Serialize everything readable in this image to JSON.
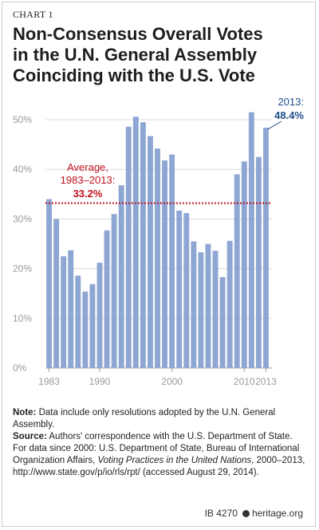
{
  "chart_label": "CHART 1",
  "title_lines": [
    "Non-Consensus Overall Votes",
    "in the U.N. General Assembly",
    "Coinciding with the U.S. Vote"
  ],
  "chart_data": {
    "type": "bar",
    "x": [
      1983,
      1984,
      1985,
      1986,
      1987,
      1988,
      1989,
      1990,
      1991,
      1992,
      1993,
      1994,
      1995,
      1996,
      1997,
      1998,
      1999,
      2000,
      2001,
      2002,
      2003,
      2004,
      2005,
      2006,
      2007,
      2008,
      2009,
      2010,
      2011,
      2012,
      2013
    ],
    "values": [
      34.0,
      30.0,
      22.5,
      23.7,
      18.6,
      15.4,
      16.9,
      21.2,
      27.7,
      31.0,
      36.8,
      48.6,
      50.6,
      49.5,
      46.7,
      44.2,
      41.8,
      43.0,
      31.7,
      31.2,
      25.5,
      23.3,
      25.0,
      23.6,
      18.3,
      25.6,
      39.0,
      41.6,
      51.5,
      42.5,
      48.4
    ],
    "y_ticks": [
      "0%",
      "10%",
      "20%",
      "30%",
      "40%",
      "50%"
    ],
    "x_ticks": [
      "1983",
      "1990",
      "2000",
      "2010",
      "2013"
    ],
    "ylim": [
      0,
      55
    ],
    "average": 33.2,
    "bar_color": "#8ea6d3",
    "average_color": "#c1121f"
  },
  "annotations": {
    "average_line1": "Average,",
    "average_line2": "1983–2013:",
    "average_value": "33.2%",
    "last_label": "2013:",
    "last_value": "48.4%"
  },
  "notes": {
    "note_label": "Note:",
    "note_text": " Data include only resolutions adopted by the U.N. General Assembly.",
    "source_label": "Source:",
    "source_text_a": " Authors' correspondence with the U.S. Department of State. For data since 2000: U.S. Department of State, Bureau of International Organization Affairs, ",
    "source_italic": "Voting Practices in the United Nations",
    "source_text_b": ", 2000–2013, http://www.state.gov/p/io/rls/rpt/ (accessed August 29, 2014)."
  },
  "footer": {
    "id": "IB 4270",
    "site": "heritage.org"
  }
}
